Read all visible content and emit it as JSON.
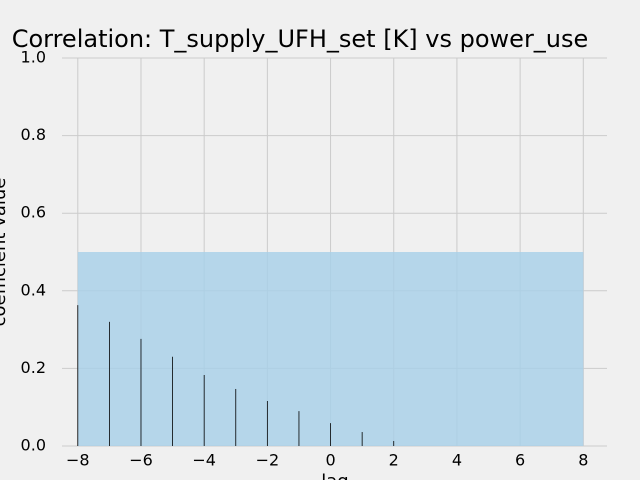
{
  "chart_data": {
    "type": "stem",
    "title": "Correlation: T_supply_UFH_set [K] vs power_use",
    "x_label": "lag",
    "y_label": "coefficient value",
    "x": [
      -8,
      -7,
      -6,
      -5,
      -4,
      -3,
      -2,
      -1,
      0,
      1,
      2,
      3,
      4,
      5,
      6,
      7,
      8
    ],
    "values": [
      0.363,
      0.32,
      0.276,
      0.23,
      0.183,
      0.147,
      0.116,
      0.09,
      0.059,
      0.036,
      0.013,
      0,
      0,
      0,
      0,
      0,
      0
    ],
    "color": "#000000",
    "shaded_region": {
      "x": [
        -8,
        8
      ],
      "y": [
        0,
        0.5
      ],
      "color": "#a6d0e8"
    },
    "xlim": [
      -8.5,
      8.75
    ],
    "ylim": [
      0,
      1
    ],
    "xticks": [
      {
        "value": -8,
        "label": "−8"
      },
      {
        "value": -6,
        "label": "−6"
      },
      {
        "value": -4,
        "label": "−4"
      },
      {
        "value": -2,
        "label": "−2"
      },
      0,
      2,
      4,
      6,
      8
    ],
    "yticks": [
      {
        "value": 0,
        "label": "0.0"
      },
      0.2,
      0.4,
      0.6,
      0.8,
      {
        "value": 1,
        "label": "1.0"
      }
    ],
    "grid": true
  }
}
